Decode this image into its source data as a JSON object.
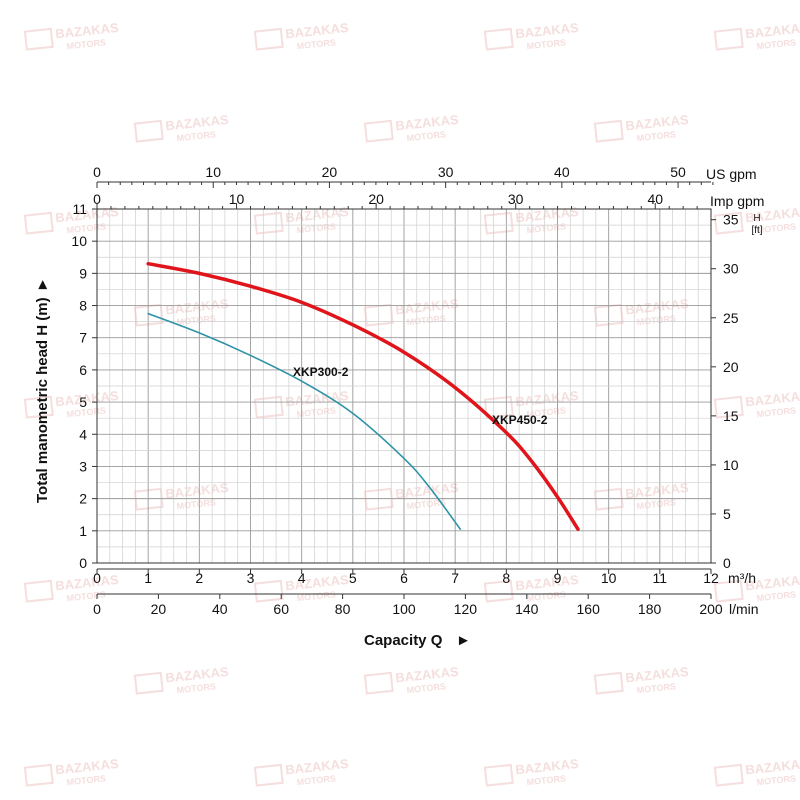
{
  "watermark": {
    "line1": "BAZAKAS",
    "line2": "MOTORS",
    "color": "#f3d6d6"
  },
  "chart_data": {
    "type": "line",
    "title": "",
    "xlabel": "Capacity Q",
    "ylabel": "Total manometric head H (m)",
    "xlabel_arrow": "►",
    "ylabel_arrow": "►",
    "grid": true,
    "xlim": [
      0,
      12
    ],
    "ylim": [
      0,
      11
    ],
    "x_unit": "m³/h",
    "x_ticks": [
      0,
      1,
      2,
      3,
      4,
      5,
      6,
      7,
      8,
      9,
      10,
      11,
      12
    ],
    "y_ticks": [
      0,
      1,
      2,
      3,
      4,
      5,
      6,
      7,
      8,
      9,
      10,
      11
    ],
    "secondary_axes": {
      "lmin": {
        "unit": "l/min",
        "ticks": [
          0,
          20,
          40,
          60,
          80,
          100,
          120,
          140,
          160,
          180,
          200
        ]
      },
      "imp_gpm": {
        "unit": "Imp gpm",
        "ticks": [
          0,
          10,
          20,
          30,
          40
        ]
      },
      "us_gpm": {
        "unit": "US gpm",
        "ticks": [
          0,
          10,
          20,
          30,
          40,
          50
        ]
      },
      "ft": {
        "unit_top": "H",
        "unit_bottom": "[ft]",
        "ticks": [
          0,
          5,
          10,
          15,
          20,
          25,
          30,
          35
        ]
      }
    },
    "series": [
      {
        "name": "XKP300-2",
        "color": "#2e93a6",
        "x": [
          1.0,
          2.0,
          3.0,
          4.0,
          5.0,
          6.0,
          6.5,
          7.1
        ],
        "y": [
          7.75,
          7.15,
          6.45,
          5.65,
          4.65,
          3.25,
          2.35,
          1.05
        ]
      },
      {
        "name": "XKP450-2",
        "color": "#e0141b",
        "x": [
          1.0,
          2.0,
          3.0,
          4.0,
          5.0,
          6.0,
          7.0,
          8.0,
          8.5,
          9.0,
          9.4
        ],
        "y": [
          9.3,
          9.0,
          8.6,
          8.1,
          7.4,
          6.55,
          5.45,
          4.05,
          3.15,
          2.05,
          1.05
        ]
      }
    ]
  }
}
